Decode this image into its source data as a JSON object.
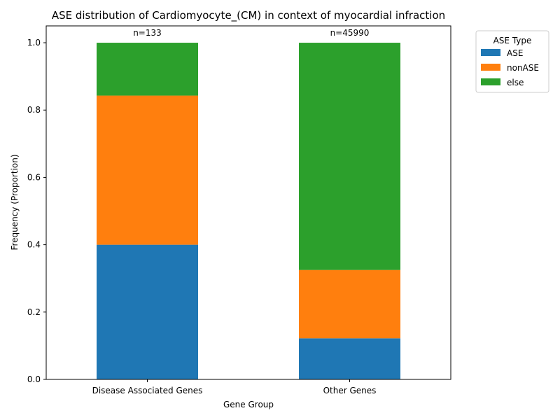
{
  "chart_data": {
    "type": "bar",
    "stacked": true,
    "title": "ASE distribution of Cardiomyocyte_(CM) in context of myocardial infraction",
    "xlabel": "Gene Group",
    "ylabel": "Frequency (Proportion)",
    "categories": [
      "Disease Associated Genes",
      "Other Genes"
    ],
    "counts": [
      "n=133",
      "n=45990"
    ],
    "ylim": [
      0,
      1.05
    ],
    "yticks": [
      0.0,
      0.2,
      0.4,
      0.6,
      0.8,
      1.0
    ],
    "ytick_labels": [
      "0.0",
      "0.2",
      "0.4",
      "0.6",
      "0.8",
      "1.0"
    ],
    "grid": false,
    "legend": {
      "title": "ASE Type",
      "placement": "outside-top-right"
    },
    "series": [
      {
        "name": "ASE",
        "color": "#1f77b4",
        "values": [
          0.4,
          0.122
        ]
      },
      {
        "name": "nonASE",
        "color": "#ff7f0e",
        "values": [
          0.443,
          0.203
        ]
      },
      {
        "name": "else",
        "color": "#2ca02c",
        "values": [
          0.157,
          0.675
        ]
      }
    ]
  }
}
